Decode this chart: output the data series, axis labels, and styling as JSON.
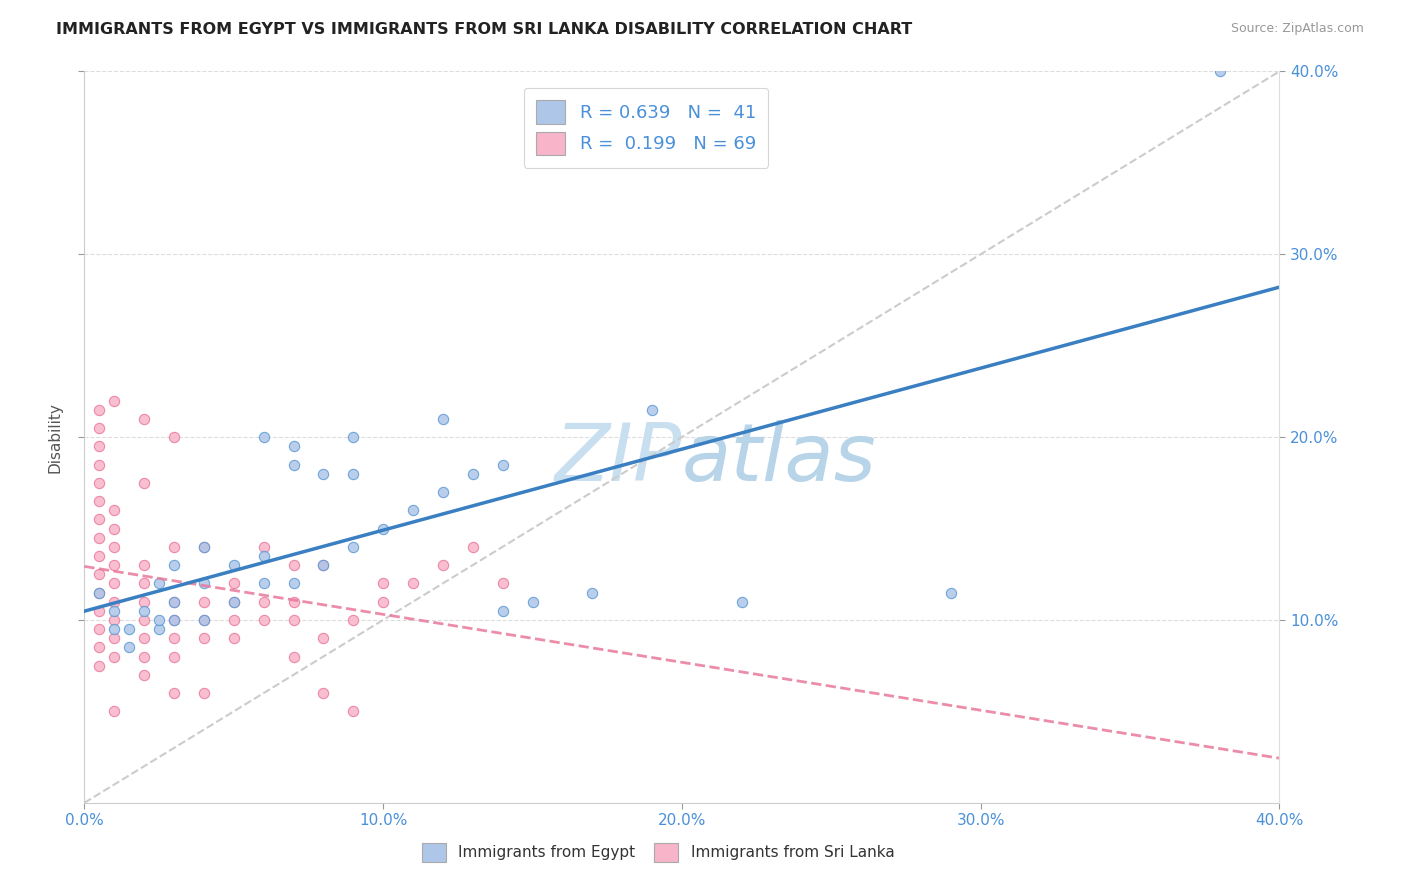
{
  "title": "IMMIGRANTS FROM EGYPT VS IMMIGRANTS FROM SRI LANKA DISABILITY CORRELATION CHART",
  "source": "Source: ZipAtlas.com",
  "ylabel": "Disability",
  "xlim": [
    0.0,
    0.4
  ],
  "ylim": [
    0.0,
    0.4
  ],
  "xtick_vals": [
    0.0,
    0.1,
    0.2,
    0.3,
    0.4
  ],
  "ytick_vals": [
    0.1,
    0.2,
    0.3,
    0.4
  ],
  "legend_r_egypt": "R = 0.639",
  "legend_n_egypt": "N = 41",
  "legend_r_srilanka": "R = 0.199",
  "legend_n_srilanka": "N = 69",
  "egypt_fill_color": "#aec6e8",
  "srilanka_fill_color": "#f8b4c8",
  "egypt_edge_color": "#5b9bd5",
  "srilanka_edge_color": "#e8799a",
  "egypt_line_color": "#3a7fc1",
  "srilanka_line_color": "#e8799a",
  "diag_line_color": "#cccccc",
  "watermark_color": "#c8dff0",
  "egypt_scatter": [
    [
      0.005,
      0.115
    ],
    [
      0.01,
      0.095
    ],
    [
      0.01,
      0.105
    ],
    [
      0.015,
      0.085
    ],
    [
      0.015,
      0.095
    ],
    [
      0.02,
      0.105
    ],
    [
      0.025,
      0.095
    ],
    [
      0.025,
      0.1
    ],
    [
      0.025,
      0.12
    ],
    [
      0.03,
      0.1
    ],
    [
      0.03,
      0.11
    ],
    [
      0.03,
      0.13
    ],
    [
      0.04,
      0.1
    ],
    [
      0.04,
      0.12
    ],
    [
      0.04,
      0.14
    ],
    [
      0.05,
      0.11
    ],
    [
      0.05,
      0.13
    ],
    [
      0.06,
      0.12
    ],
    [
      0.06,
      0.135
    ],
    [
      0.06,
      0.2
    ],
    [
      0.07,
      0.12
    ],
    [
      0.07,
      0.185
    ],
    [
      0.07,
      0.195
    ],
    [
      0.08,
      0.13
    ],
    [
      0.08,
      0.18
    ],
    [
      0.09,
      0.14
    ],
    [
      0.09,
      0.18
    ],
    [
      0.09,
      0.2
    ],
    [
      0.1,
      0.15
    ],
    [
      0.11,
      0.16
    ],
    [
      0.12,
      0.17
    ],
    [
      0.12,
      0.21
    ],
    [
      0.13,
      0.18
    ],
    [
      0.14,
      0.105
    ],
    [
      0.14,
      0.185
    ],
    [
      0.15,
      0.11
    ],
    [
      0.17,
      0.115
    ],
    [
      0.19,
      0.215
    ],
    [
      0.22,
      0.11
    ],
    [
      0.29,
      0.115
    ],
    [
      0.38,
      0.4
    ]
  ],
  "srilanka_scatter": [
    [
      0.005,
      0.085
    ],
    [
      0.005,
      0.095
    ],
    [
      0.005,
      0.105
    ],
    [
      0.005,
      0.115
    ],
    [
      0.005,
      0.125
    ],
    [
      0.005,
      0.135
    ],
    [
      0.005,
      0.145
    ],
    [
      0.005,
      0.155
    ],
    [
      0.005,
      0.165
    ],
    [
      0.005,
      0.175
    ],
    [
      0.005,
      0.185
    ],
    [
      0.005,
      0.195
    ],
    [
      0.005,
      0.205
    ],
    [
      0.005,
      0.215
    ],
    [
      0.005,
      0.075
    ],
    [
      0.01,
      0.08
    ],
    [
      0.01,
      0.09
    ],
    [
      0.01,
      0.1
    ],
    [
      0.01,
      0.11
    ],
    [
      0.01,
      0.12
    ],
    [
      0.01,
      0.13
    ],
    [
      0.01,
      0.14
    ],
    [
      0.01,
      0.15
    ],
    [
      0.01,
      0.16
    ],
    [
      0.01,
      0.05
    ],
    [
      0.01,
      0.22
    ],
    [
      0.02,
      0.07
    ],
    [
      0.02,
      0.08
    ],
    [
      0.02,
      0.09
    ],
    [
      0.02,
      0.1
    ],
    [
      0.02,
      0.11
    ],
    [
      0.02,
      0.12
    ],
    [
      0.02,
      0.13
    ],
    [
      0.02,
      0.175
    ],
    [
      0.02,
      0.21
    ],
    [
      0.03,
      0.08
    ],
    [
      0.03,
      0.09
    ],
    [
      0.03,
      0.1
    ],
    [
      0.03,
      0.11
    ],
    [
      0.03,
      0.14
    ],
    [
      0.03,
      0.2
    ],
    [
      0.03,
      0.06
    ],
    [
      0.04,
      0.09
    ],
    [
      0.04,
      0.1
    ],
    [
      0.04,
      0.11
    ],
    [
      0.04,
      0.14
    ],
    [
      0.04,
      0.06
    ],
    [
      0.05,
      0.09
    ],
    [
      0.05,
      0.1
    ],
    [
      0.05,
      0.11
    ],
    [
      0.05,
      0.12
    ],
    [
      0.06,
      0.1
    ],
    [
      0.06,
      0.11
    ],
    [
      0.06,
      0.14
    ],
    [
      0.07,
      0.1
    ],
    [
      0.07,
      0.11
    ],
    [
      0.07,
      0.13
    ],
    [
      0.07,
      0.08
    ],
    [
      0.08,
      0.09
    ],
    [
      0.08,
      0.13
    ],
    [
      0.08,
      0.06
    ],
    [
      0.09,
      0.1
    ],
    [
      0.09,
      0.05
    ],
    [
      0.1,
      0.11
    ],
    [
      0.1,
      0.12
    ],
    [
      0.11,
      0.12
    ],
    [
      0.12,
      0.13
    ],
    [
      0.13,
      0.14
    ],
    [
      0.14,
      0.12
    ]
  ]
}
